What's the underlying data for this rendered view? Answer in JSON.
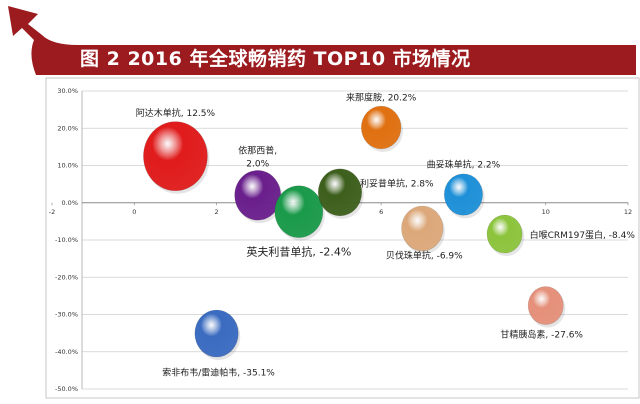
{
  "figure": {
    "title": "图 2   2016 年全球畅销药 TOP10 市场情况",
    "banner_color": "#9b1b1e",
    "arrow_icon": "curved-arrow-icon"
  },
  "chart_data": {
    "type": "bubble",
    "title": "2016 年全球畅销药 TOP10 市场情况",
    "xlim": [
      -2,
      12
    ],
    "ylim": [
      -50,
      30
    ],
    "x_ticks": [
      -2,
      0,
      2,
      4,
      6,
      8,
      10,
      12
    ],
    "y_ticks": [
      30,
      20,
      10,
      0,
      -10,
      -20,
      -30,
      -40,
      -50
    ],
    "y_tick_labels": [
      "30.0%",
      "20.0%",
      "10.0%",
      "0.0%",
      "-10.0%",
      "-20.0%",
      "-30.0%",
      "-40.0%",
      "-50.0%"
    ],
    "grid": true,
    "series": [
      {
        "name": "阿达木单抗",
        "x": 1,
        "y": 12.5,
        "size": 1.0,
        "color": "#e01b1b",
        "label": "阿达木单抗, 12.5%"
      },
      {
        "name": "来那度胺",
        "x": 6,
        "y": 20.2,
        "size": 0.62,
        "color": "#e07010",
        "label": "来那度胺, 20.2%"
      },
      {
        "name": "依那西普",
        "x": 3,
        "y": 2.0,
        "size": 0.72,
        "color": "#6a1f8c",
        "label": "依那西普, 2.0%",
        "label_lines": [
          "依那西普,",
          "2.0%"
        ]
      },
      {
        "name": "英夫利昔单抗",
        "x": 4,
        "y": -2.4,
        "size": 0.75,
        "color": "#1a9a4a",
        "label": "英夫利昔单抗, -2.4%"
      },
      {
        "name": "利妥昔单抗",
        "x": 5,
        "y": 2.8,
        "size": 0.68,
        "color": "#3d5f1c",
        "label": "利妥昔单抗, 2.8%"
      },
      {
        "name": "曲妥珠单抗",
        "x": 8,
        "y": 2.2,
        "size": 0.6,
        "color": "#1e90d8",
        "label": "曲妥珠单抗, 2.2%"
      },
      {
        "name": "贝伐珠单抗",
        "x": 7,
        "y": -6.9,
        "size": 0.65,
        "color": "#dca87a",
        "label": "贝伐珠单抗, -6.9%"
      },
      {
        "name": "白喉CRM197蛋白",
        "x": 9,
        "y": -8.4,
        "size": 0.55,
        "color": "#8cc43c",
        "label": "白喉CRM197蛋白, -8.4%"
      },
      {
        "name": "甘精胰岛素",
        "x": 10,
        "y": -27.6,
        "size": 0.55,
        "color": "#e5907a",
        "label": "甘精胰岛素, -27.6%"
      },
      {
        "name": "索非布韦/雷迪帕韦",
        "x": 2,
        "y": -35.1,
        "size": 0.68,
        "color": "#3a6bc0",
        "label": "索非布韦/雷迪帕韦, -35.1%"
      }
    ]
  }
}
